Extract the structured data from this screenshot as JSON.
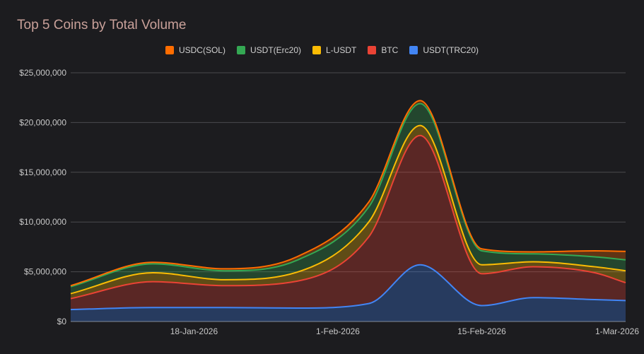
{
  "chart_data": {
    "type": "area",
    "stacked": true,
    "title": "Top 5 Coins by Total Volume",
    "x": [
      "2026-01-06",
      "2026-01-14",
      "2026-01-21",
      "2026-01-28",
      "2026-02-04",
      "2026-02-09",
      "2026-02-15",
      "2026-02-20",
      "2026-02-26",
      "2026-03-01"
    ],
    "xticks": [
      "18-Jan-2026",
      "1-Feb-2026",
      "15-Feb-2026",
      "1-Mar-2026"
    ],
    "ylim": [
      0,
      25000000
    ],
    "yticks": [
      "$0",
      "$5,000,000",
      "$10,000,000",
      "$15,000,000",
      "$20,000,000",
      "$25,000,000"
    ],
    "legend_position": "top",
    "series": [
      {
        "name": "USDC(SOL)",
        "color": "#ff6d00",
        "values": [
          100000,
          150000,
          200000,
          350000,
          500000,
          300000,
          200000,
          200000,
          600000,
          850000
        ]
      },
      {
        "name": "USDT(Erc20)",
        "color": "#34a853",
        "values": [
          700000,
          900000,
          900000,
          1200000,
          1500000,
          2200000,
          1400000,
          800000,
          1000000,
          1100000
        ]
      },
      {
        "name": "L-USDT",
        "color": "#fbbc04",
        "values": [
          500000,
          900000,
          600000,
          900000,
          1500000,
          1000000,
          900000,
          500000,
          600000,
          1200000
        ]
      },
      {
        "name": "BTC",
        "color": "#ea4335",
        "values": [
          1100000,
          2600000,
          2200000,
          2700000,
          6700000,
          13000000,
          3200000,
          3100000,
          2700000,
          1800000
        ]
      },
      {
        "name": "USDT(TRC20)",
        "color": "#4285f4",
        "values": [
          1200000,
          1400000,
          1400000,
          1350000,
          1800000,
          5700000,
          1600000,
          2400000,
          2200000,
          2100000
        ]
      }
    ]
  }
}
